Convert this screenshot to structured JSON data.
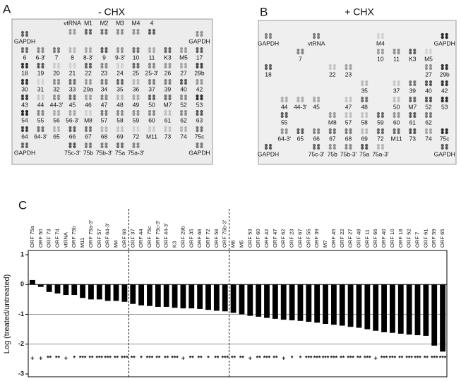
{
  "panel_a": {
    "letter": "A",
    "title": "- CHX",
    "spots": [
      [
        "GAPDH",
        "vtRNA",
        "M1",
        "M2",
        "M3",
        "M4",
        "4",
        "GAPDH"
      ],
      [
        "6",
        "6-3'",
        "7",
        "8",
        "8-3'",
        "9",
        "9-3'",
        "10",
        "11",
        "K3",
        "M5",
        "17"
      ],
      [
        "18",
        "19",
        "20",
        "21",
        "22",
        "23",
        "24",
        "25",
        "25-3'",
        "26",
        "27",
        "29b"
      ],
      [
        "30",
        "31",
        "32",
        "33",
        "29a",
        "34",
        "35",
        "36",
        "37",
        "39",
        "40",
        "42"
      ],
      [
        "43",
        "44",
        "44-3'",
        "45",
        "46",
        "47",
        "48",
        "49",
        "50",
        "M7",
        "52",
        "53"
      ],
      [
        "54",
        "55",
        "56",
        "56-3'",
        "M8",
        "57",
        "58",
        "59",
        "60",
        "61",
        "62",
        "63"
      ],
      [
        "64",
        "64-3'",
        "65",
        "66",
        "67",
        "68",
        "69",
        "72",
        "M11",
        "73",
        "74",
        "75c"
      ],
      [
        "GAPDH",
        "75c-3'",
        "75b",
        "75b-3'",
        "75a",
        "75a-3'",
        "GAPDH"
      ]
    ]
  },
  "panel_b": {
    "letter": "B",
    "title": "+ CHX",
    "spots": [
      [
        "GAPDH",
        "vtRNA",
        "M4",
        "GAPDH"
      ],
      [
        "7",
        "10",
        "11",
        "K3",
        "M5"
      ],
      [
        "18",
        "22",
        "23",
        "27",
        "29b"
      ],
      [
        "35",
        "37",
        "39",
        "40",
        "42"
      ],
      [
        "44",
        "44-3'",
        "45",
        "47",
        "48",
        "50",
        "M7",
        "52",
        "53"
      ],
      [
        "55",
        "M8",
        "57",
        "58",
        "59",
        "60",
        "61",
        "62"
      ],
      [
        "64-3'",
        "65",
        "66",
        "67",
        "68",
        "69",
        "72",
        "M11",
        "73",
        "74",
        "75c"
      ],
      [
        "GAPDH",
        "75c-3'",
        "75b",
        "75b-3'",
        "75a",
        "75a-3'",
        "GAPDH"
      ]
    ]
  },
  "chart_data": {
    "type": "bar",
    "letter": "C",
    "y_label": "Log (treated/untreated)",
    "categories": [
      "ORF 75a",
      "ORF 50",
      "ORF 73",
      "ORF 74",
      "vtRNA",
      "ORF 75b",
      "M11",
      "ORF 75a-3'",
      "ORF 57",
      "ORF 64-3'",
      "M4",
      "ORF 69",
      "ORF 37",
      "ORF 44",
      "ORF 75c",
      "ORF 75c-3'",
      "ORF 44-3'",
      "K3",
      "ORF 29b",
      "ORF 35",
      "ORF 68",
      "ORF 72",
      "ORF 58",
      "ORF 75b-3'",
      "M8",
      "M5",
      "ORF 53",
      "ORF 60",
      "ORF 42",
      "ORF 47",
      "ORF 62",
      "ORF 23",
      "ORF 67",
      "ORF 55",
      "ORF 39",
      "M7",
      "ORF 45",
      "ORF 22",
      "ORF 27",
      "ORF 48",
      "ORF 11",
      "ORF 66",
      "ORF 40",
      "ORF 10",
      "ORF 18",
      "ORF 52",
      "ORF 7",
      "ORF 61",
      "ORF 59",
      "ORF 65"
    ],
    "values": [
      0.15,
      -0.08,
      -0.25,
      -0.3,
      -0.35,
      -0.35,
      -0.45,
      -0.5,
      -0.5,
      -0.55,
      -0.55,
      -0.58,
      -0.65,
      -0.7,
      -0.72,
      -0.75,
      -0.75,
      -0.78,
      -0.8,
      -0.8,
      -0.82,
      -0.85,
      -0.88,
      -0.9,
      -0.95,
      -1.0,
      -1.05,
      -1.08,
      -1.12,
      -1.15,
      -1.18,
      -1.2,
      -1.22,
      -1.25,
      -1.28,
      -1.32,
      -1.35,
      -1.38,
      -1.42,
      -1.45,
      -1.5,
      -1.55,
      -1.6,
      -1.62,
      -1.65,
      -1.68,
      -1.7,
      -1.72,
      -2.05,
      -2.25
    ],
    "significance": [
      "+",
      "+",
      "**",
      "**",
      "+",
      "*",
      "***",
      "**",
      "***",
      "***",
      "**",
      "***",
      "**",
      "*",
      "***",
      "**",
      "**",
      "***",
      "+",
      "**",
      "**",
      "*",
      "**",
      "***",
      "**",
      "**",
      "+",
      "**",
      "***",
      "**",
      "+",
      "*",
      "*",
      "***",
      "***",
      "***",
      "***",
      "**",
      "***",
      "**",
      "***",
      "+",
      "***",
      "***",
      "**",
      "***",
      "***",
      "**",
      "***",
      "***"
    ],
    "color": "#000000",
    "ylim": [
      -3,
      1
    ],
    "yticks": [
      1,
      0,
      -1,
      -2,
      -3
    ],
    "grid": true
  }
}
